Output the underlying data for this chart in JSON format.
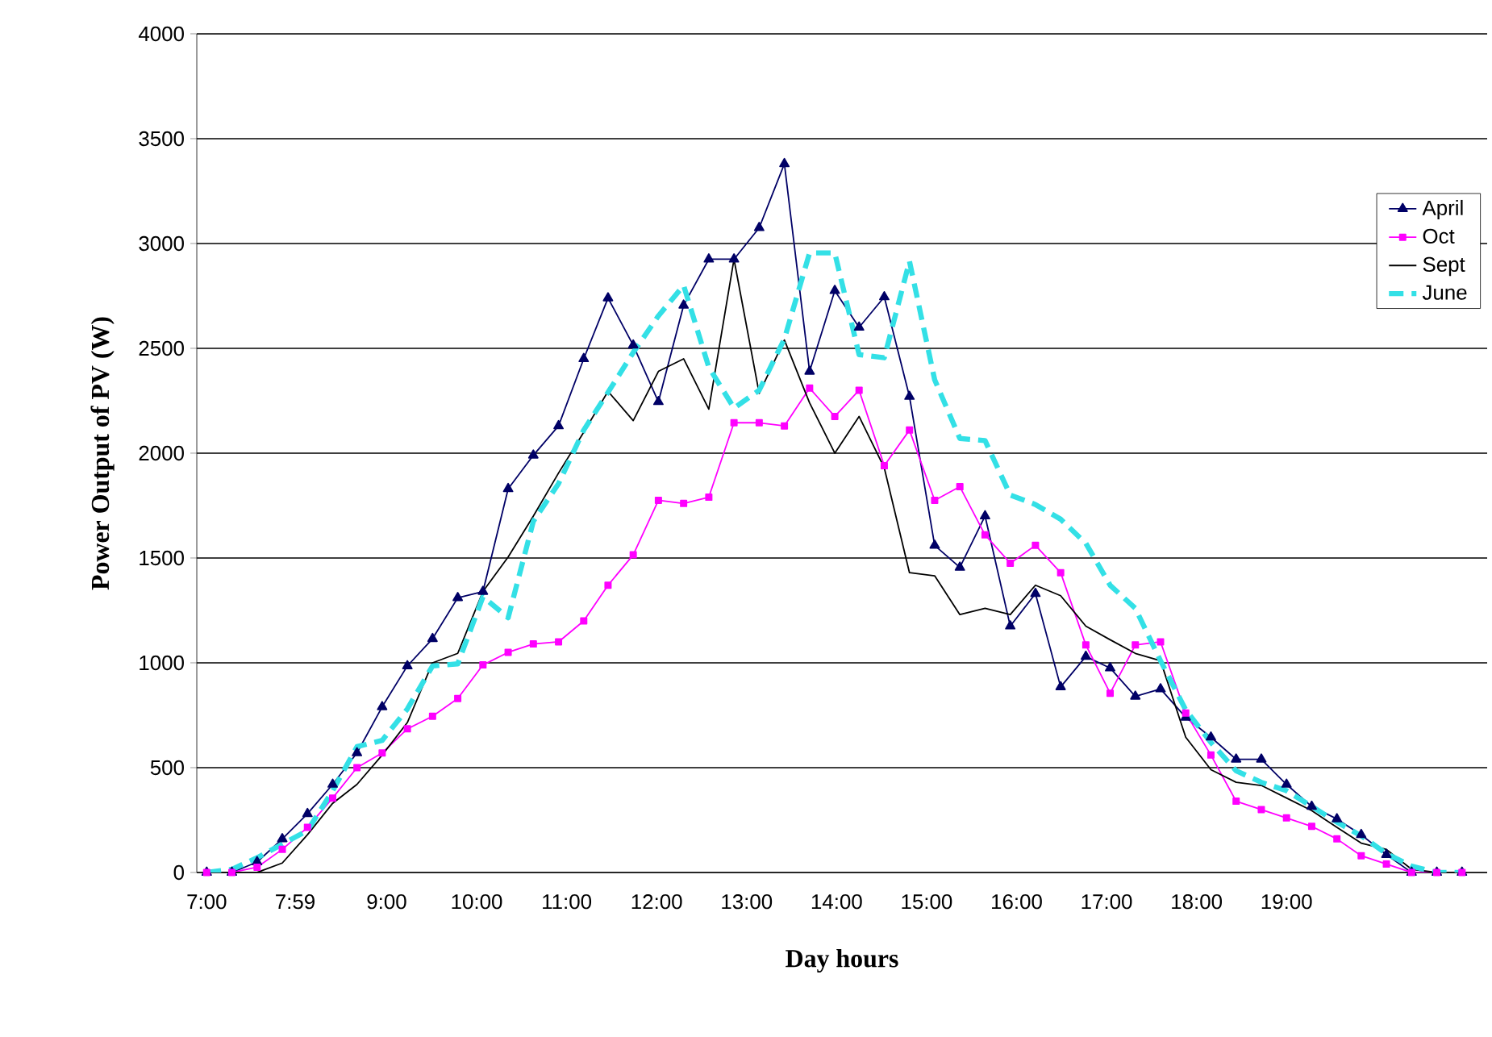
{
  "chart_data": {
    "type": "line",
    "xlabel": "Day hours",
    "ylabel": "Power Output of PV (W)",
    "x": [
      7,
      7.28,
      7.56,
      7.84,
      8.12,
      8.4,
      8.67,
      8.95,
      9.23,
      9.51,
      9.79,
      10.07,
      10.35,
      10.63,
      10.91,
      11.19,
      11.46,
      11.74,
      12.02,
      12.3,
      12.58,
      12.86,
      13.14,
      13.42,
      13.7,
      13.98,
      14.25,
      14.53,
      14.81,
      15.09,
      15.37,
      15.65,
      15.93,
      16.21,
      16.49,
      16.77,
      17.04,
      17.32,
      17.6,
      17.88,
      18.16,
      18.44,
      18.72,
      19,
      19.28,
      19.56,
      19.83,
      20.11,
      20.39,
      20.67,
      20.95
    ],
    "series": [
      {
        "name": "April",
        "color": "#000066",
        "marker": "triangle",
        "line_style": "solid",
        "values": [
          0,
          0,
          50,
          160,
          280,
          420,
          570,
          790,
          985,
          1115,
          1310,
          1340,
          1830,
          1990,
          2130,
          2450,
          2740,
          2515,
          2245,
          2705,
          2925,
          2925,
          3075,
          3380,
          2390,
          2775,
          2600,
          2745,
          2270,
          1560,
          1455,
          1700,
          1175,
          1330,
          885,
          1030,
          975,
          840,
          875,
          740,
          645,
          540,
          540,
          420,
          315,
          255,
          180,
          85,
          0,
          0,
          0
        ]
      },
      {
        "name": "Oct",
        "color": "#ff00ff",
        "marker": "square",
        "line_style": "solid",
        "values": [
          0,
          0,
          25,
          110,
          215,
          355,
          500,
          570,
          685,
          745,
          830,
          990,
          1050,
          1090,
          1100,
          1200,
          1370,
          1515,
          1775,
          1760,
          1790,
          2145,
          2145,
          2130,
          2310,
          2175,
          2300,
          1940,
          2110,
          1775,
          1840,
          1610,
          1475,
          1560,
          1430,
          1085,
          855,
          1085,
          1100,
          760,
          560,
          340,
          300,
          260,
          220,
          160,
          80,
          40,
          0,
          0,
          0
        ]
      },
      {
        "name": "Sept",
        "color": "#000000",
        "marker": "none",
        "line_style": "solid",
        "values": [
          0,
          0,
          0,
          45,
          180,
          330,
          420,
          560,
          715,
          1000,
          1045,
          1340,
          1505,
          1700,
          1905,
          2100,
          2295,
          2155,
          2390,
          2450,
          2210,
          2925,
          2285,
          2540,
          2240,
          2000,
          2175,
          1930,
          1430,
          1415,
          1230,
          1260,
          1230,
          1370,
          1320,
          1175,
          1110,
          1045,
          1010,
          645,
          490,
          430,
          415,
          355,
          295,
          215,
          140,
          110,
          15,
          0,
          0
        ]
      },
      {
        "name": "June",
        "color": "#33e0e6",
        "marker": "none",
        "line_style": "dashed",
        "values": [
          0,
          15,
          70,
          135,
          200,
          390,
          600,
          630,
          780,
          985,
          995,
          1315,
          1215,
          1675,
          1855,
          2110,
          2290,
          2480,
          2655,
          2800,
          2410,
          2215,
          2300,
          2545,
          2955,
          2955,
          2470,
          2455,
          2915,
          2350,
          2070,
          2060,
          1800,
          1755,
          1685,
          1570,
          1370,
          1260,
          1010,
          775,
          620,
          485,
          430,
          390,
          315,
          240,
          175,
          90,
          30,
          0,
          0
        ]
      }
    ],
    "xlim": [
      6.89,
      21.23
    ],
    "xticks": [
      {
        "value": 7,
        "label": "7:00"
      },
      {
        "value": 7.983,
        "label": "7:59"
      },
      {
        "value": 9,
        "label": "9:00"
      },
      {
        "value": 10,
        "label": "10:00"
      },
      {
        "value": 11,
        "label": "11:00"
      },
      {
        "value": 12,
        "label": "12:00"
      },
      {
        "value": 13,
        "label": "13:00"
      },
      {
        "value": 14,
        "label": "14:00"
      },
      {
        "value": 15,
        "label": "15:00"
      },
      {
        "value": 16,
        "label": "16:00"
      },
      {
        "value": 17,
        "label": "17:00"
      },
      {
        "value": 18,
        "label": "18:00"
      },
      {
        "value": 19,
        "label": "19:00"
      }
    ],
    "ylim": [
      0,
      4000
    ],
    "yticks": [
      0,
      500,
      1000,
      1500,
      2000,
      2500,
      3000,
      3500,
      4000
    ],
    "grid": "y",
    "legend": "top right"
  }
}
